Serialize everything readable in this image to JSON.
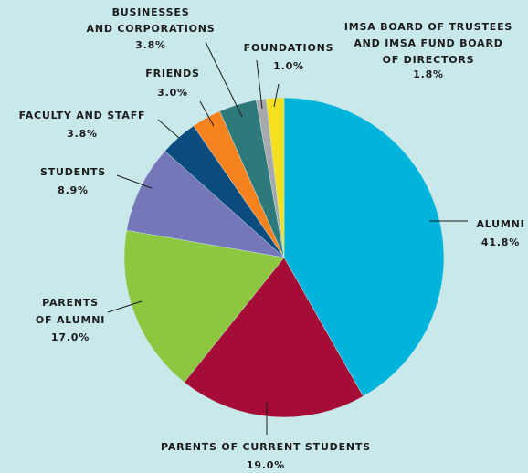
{
  "chart_data": {
    "type": "pie",
    "categories": [
      [
        "ALUMNI"
      ],
      [
        "PARENTS OF CURRENT STUDENTS"
      ],
      [
        "PARENTS",
        "OF ALUMNI"
      ],
      [
        "STUDENTS"
      ],
      [
        "FACULTY AND STAFF"
      ],
      [
        "FRIENDS"
      ],
      [
        "BUSINESSES",
        "AND CORPORATIONS"
      ],
      [
        "FOUNDATIONS"
      ],
      [
        "IMSA BOARD OF TRUSTEES",
        "AND IMSA FUND BOARD",
        "OF DIRECTORS"
      ]
    ],
    "values": [
      41.8,
      19.0,
      17.0,
      8.9,
      3.8,
      3.0,
      3.8,
      1.0,
      1.8
    ],
    "value_labels": [
      "41.8%",
      "19.0%",
      "17.0%",
      "8.9%",
      "3.8%",
      "3.0%",
      "3.8%",
      "1.0%",
      "1.8%"
    ],
    "colors": [
      "#00b4dc",
      "#a50d36",
      "#8dc63f",
      "#7577b9",
      "#0b4c7e",
      "#f5821f",
      "#2e7a7a",
      "#a7a9ac",
      "#f4e01c"
    ]
  }
}
